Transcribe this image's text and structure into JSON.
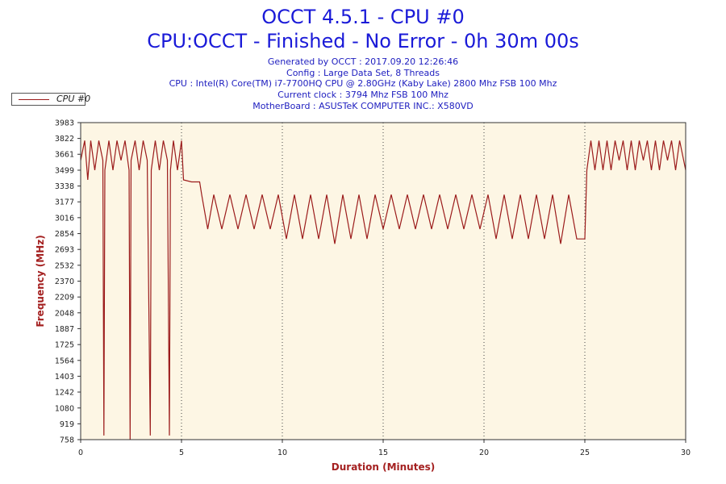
{
  "header": {
    "title": "OCCT 4.5.1 - CPU #0",
    "subtitle": "CPU:OCCT - Finished - No Error - 0h 30m 00s",
    "info_lines": [
      "Generated by OCCT : 2017.09.20 12:26:46",
      "Config : Large Data Set, 8 Threads",
      "CPU : Intel(R) Core(TM) i7-7700HQ CPU @ 2.80GHz (Kaby Lake) 2800 Mhz FSB 100 Mhz",
      "Current clock : 3794 Mhz FSB 100 Mhz",
      "MotherBoard : ASUSTeK COMPUTER INC.: X580VD"
    ]
  },
  "colors": {
    "series": "#9b1b1b",
    "plot_background": "#fdf6e4",
    "title": "#1a1ad8",
    "axis_title": "#a42020"
  },
  "chart_data": {
    "type": "line",
    "xlabel": "Duration (Minutes)",
    "ylabel": "Frequency (MHz)",
    "xlim": [
      0,
      30
    ],
    "ylim": [
      758,
      3983
    ],
    "x_ticks": [
      0,
      5,
      10,
      15,
      20,
      25,
      30
    ],
    "y_ticks": [
      758,
      919,
      1080,
      1242,
      1403,
      1564,
      1725,
      1887,
      2048,
      2209,
      2370,
      2532,
      2693,
      2854,
      3016,
      3177,
      3338,
      3499,
      3661,
      3822,
      3983
    ],
    "grid": "vertical dotted at each x tick",
    "legend": "top-left",
    "series": [
      {
        "name": "CPU #0",
        "points": [
          [
            0,
            3600
          ],
          [
            0.2,
            3800
          ],
          [
            0.35,
            3400
          ],
          [
            0.5,
            3800
          ],
          [
            0.7,
            3500
          ],
          [
            0.9,
            3800
          ],
          [
            1.1,
            3600
          ],
          [
            1.15,
            800
          ],
          [
            1.2,
            3500
          ],
          [
            1.4,
            3800
          ],
          [
            1.6,
            3500
          ],
          [
            1.8,
            3800
          ],
          [
            2.0,
            3600
          ],
          [
            2.2,
            3800
          ],
          [
            2.4,
            3500
          ],
          [
            2.45,
            758
          ],
          [
            2.5,
            3600
          ],
          [
            2.7,
            3800
          ],
          [
            2.9,
            3500
          ],
          [
            3.1,
            3800
          ],
          [
            3.3,
            3600
          ],
          [
            3.45,
            800
          ],
          [
            3.5,
            3500
          ],
          [
            3.7,
            3800
          ],
          [
            3.9,
            3500
          ],
          [
            4.1,
            3800
          ],
          [
            4.3,
            3600
          ],
          [
            4.4,
            800
          ],
          [
            4.45,
            3500
          ],
          [
            4.6,
            3800
          ],
          [
            4.8,
            3500
          ],
          [
            5.0,
            3800
          ],
          [
            5.1,
            3400
          ],
          [
            5.5,
            3380
          ],
          [
            5.9,
            3380
          ],
          [
            6.0,
            3250
          ],
          [
            6.3,
            2900
          ],
          [
            6.6,
            3250
          ],
          [
            7.0,
            2900
          ],
          [
            7.4,
            3250
          ],
          [
            7.8,
            2900
          ],
          [
            8.2,
            3250
          ],
          [
            8.6,
            2900
          ],
          [
            9.0,
            3250
          ],
          [
            9.4,
            2900
          ],
          [
            9.8,
            3250
          ],
          [
            10.2,
            2800
          ],
          [
            10.6,
            3250
          ],
          [
            11.0,
            2800
          ],
          [
            11.4,
            3250
          ],
          [
            11.8,
            2800
          ],
          [
            12.2,
            3250
          ],
          [
            12.6,
            2750
          ],
          [
            13.0,
            3250
          ],
          [
            13.4,
            2800
          ],
          [
            13.8,
            3250
          ],
          [
            14.2,
            2800
          ],
          [
            14.6,
            3250
          ],
          [
            15.0,
            2900
          ],
          [
            15.4,
            3250
          ],
          [
            15.8,
            2900
          ],
          [
            16.2,
            3250
          ],
          [
            16.6,
            2900
          ],
          [
            17.0,
            3250
          ],
          [
            17.4,
            2900
          ],
          [
            17.8,
            3250
          ],
          [
            18.2,
            2900
          ],
          [
            18.6,
            3250
          ],
          [
            19.0,
            2900
          ],
          [
            19.4,
            3250
          ],
          [
            19.8,
            2900
          ],
          [
            20.2,
            3250
          ],
          [
            20.6,
            2800
          ],
          [
            21.0,
            3250
          ],
          [
            21.4,
            2800
          ],
          [
            21.8,
            3250
          ],
          [
            22.2,
            2800
          ],
          [
            22.6,
            3250
          ],
          [
            23.0,
            2800
          ],
          [
            23.4,
            3250
          ],
          [
            23.8,
            2750
          ],
          [
            24.2,
            3250
          ],
          [
            24.6,
            2800
          ],
          [
            25.0,
            2800
          ],
          [
            25.1,
            3500
          ],
          [
            25.3,
            3800
          ],
          [
            25.5,
            3500
          ],
          [
            25.7,
            3800
          ],
          [
            25.9,
            3500
          ],
          [
            26.1,
            3800
          ],
          [
            26.3,
            3500
          ],
          [
            26.5,
            3800
          ],
          [
            26.7,
            3600
          ],
          [
            26.9,
            3800
          ],
          [
            27.1,
            3500
          ],
          [
            27.3,
            3800
          ],
          [
            27.5,
            3500
          ],
          [
            27.7,
            3800
          ],
          [
            27.9,
            3600
          ],
          [
            28.1,
            3800
          ],
          [
            28.3,
            3500
          ],
          [
            28.5,
            3800
          ],
          [
            28.7,
            3500
          ],
          [
            28.9,
            3800
          ],
          [
            29.1,
            3600
          ],
          [
            29.3,
            3800
          ],
          [
            29.5,
            3500
          ],
          [
            29.7,
            3800
          ],
          [
            30.0,
            3500
          ]
        ]
      }
    ]
  }
}
